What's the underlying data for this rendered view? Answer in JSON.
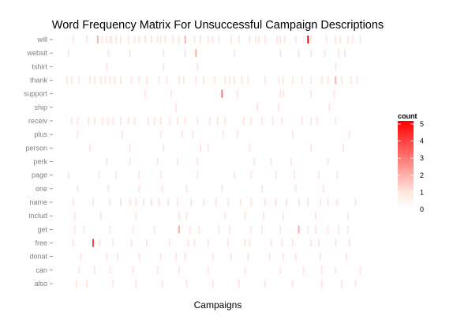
{
  "chart_data": {
    "type": "heatmap",
    "title": "Word Frequency Matrix For Unsuccessful Campaign Descriptions",
    "xlabel": "Campaigns",
    "ylabel": "",
    "x_categories_count": 200,
    "words": [
      "will",
      "websit",
      "tshirt",
      "thank",
      "support",
      "ship",
      "receiv",
      "plus",
      "person",
      "perk",
      "page",
      "one",
      "name",
      "includ",
      "get",
      "free",
      "donat",
      "can",
      "also"
    ],
    "cells": {
      "will": [
        [
          5,
          1
        ],
        [
          14,
          1
        ],
        [
          21,
          2
        ],
        [
          24,
          1
        ],
        [
          27,
          1
        ],
        [
          29,
          1
        ],
        [
          30,
          1
        ],
        [
          33,
          1
        ],
        [
          36,
          1
        ],
        [
          41,
          1
        ],
        [
          45,
          1
        ],
        [
          48,
          1
        ],
        [
          52,
          1
        ],
        [
          56,
          1
        ],
        [
          60,
          1
        ],
        [
          62,
          1
        ],
        [
          65,
          1
        ],
        [
          70,
          1
        ],
        [
          74,
          1
        ],
        [
          78,
          2
        ],
        [
          84,
          1
        ],
        [
          88,
          1
        ],
        [
          93,
          1
        ],
        [
          96,
          1
        ],
        [
          100,
          1
        ],
        [
          108,
          1
        ],
        [
          113,
          1
        ],
        [
          120,
          1
        ],
        [
          124,
          1
        ],
        [
          126,
          1
        ],
        [
          130,
          1
        ],
        [
          138,
          1
        ],
        [
          140,
          1
        ],
        [
          143,
          1
        ],
        [
          150,
          1
        ],
        [
          158,
          5
        ],
        [
          160,
          1
        ],
        [
          170,
          1
        ],
        [
          176,
          1
        ],
        [
          179,
          1
        ],
        [
          184,
          1
        ],
        [
          187,
          1
        ],
        [
          192,
          1
        ]
      ],
      "websit": [
        [
          2,
          1
        ],
        [
          28,
          1
        ],
        [
          42,
          1
        ],
        [
          64,
          1
        ],
        [
          78,
          1
        ],
        [
          85,
          2
        ],
        [
          110,
          1
        ],
        [
          140,
          1
        ],
        [
          152,
          1
        ],
        [
          160,
          1
        ],
        [
          169,
          1
        ],
        [
          178,
          1
        ],
        [
          182,
          1
        ]
      ],
      "tshirt": [
        [
          27,
          1
        ],
        [
          64,
          1
        ],
        [
          86,
          1
        ],
        [
          176,
          1
        ]
      ],
      "thank": [
        [
          1,
          1
        ],
        [
          4,
          1
        ],
        [
          9,
          1
        ],
        [
          16,
          1
        ],
        [
          19,
          1
        ],
        [
          23,
          1
        ],
        [
          26,
          1
        ],
        [
          29,
          1
        ],
        [
          32,
          1
        ],
        [
          36,
          1
        ],
        [
          43,
          1
        ],
        [
          48,
          1
        ],
        [
          53,
          1
        ],
        [
          61,
          1
        ],
        [
          66,
          1
        ],
        [
          74,
          1
        ],
        [
          77,
          1
        ],
        [
          85,
          1
        ],
        [
          90,
          1
        ],
        [
          97,
          1
        ],
        [
          104,
          1
        ],
        [
          107,
          1
        ],
        [
          110,
          1
        ],
        [
          115,
          1
        ],
        [
          119,
          1
        ],
        [
          130,
          1
        ],
        [
          139,
          1
        ],
        [
          142,
          1
        ],
        [
          148,
          1
        ],
        [
          154,
          1
        ],
        [
          160,
          1
        ],
        [
          167,
          1
        ],
        [
          171,
          1
        ],
        [
          176,
          2
        ],
        [
          180,
          1
        ],
        [
          186,
          1
        ],
        [
          190,
          1
        ]
      ],
      "support": [
        [
          52,
          1
        ],
        [
          69,
          1
        ],
        [
          102,
          3
        ],
        [
          112,
          1
        ],
        [
          140,
          1
        ],
        [
          142,
          1
        ],
        [
          160,
          1
        ],
        [
          175,
          1
        ]
      ],
      "ship": [
        [
          72,
          1
        ],
        [
          125,
          1
        ],
        [
          139,
          1
        ],
        [
          172,
          1
        ]
      ],
      "receiv": [
        [
          4,
          1
        ],
        [
          8,
          1
        ],
        [
          15,
          1
        ],
        [
          19,
          1
        ],
        [
          24,
          1
        ],
        [
          28,
          1
        ],
        [
          31,
          1
        ],
        [
          36,
          1
        ],
        [
          41,
          1
        ],
        [
          45,
          1
        ],
        [
          54,
          1
        ],
        [
          58,
          1
        ],
        [
          62,
          1
        ],
        [
          68,
          1
        ],
        [
          73,
          1
        ],
        [
          78,
          1
        ],
        [
          86,
          1
        ],
        [
          94,
          1
        ],
        [
          99,
          1
        ],
        [
          104,
          1
        ],
        [
          116,
          1
        ],
        [
          121,
          1
        ],
        [
          128,
          1
        ],
        [
          135,
          1
        ],
        [
          141,
          1
        ],
        [
          154,
          1
        ],
        [
          160,
          1
        ],
        [
          164,
          1
        ],
        [
          176,
          1
        ]
      ],
      "plus": [
        [
          8,
          1
        ],
        [
          37,
          1
        ],
        [
          62,
          1
        ],
        [
          76,
          1
        ],
        [
          83,
          1
        ],
        [
          103,
          1
        ],
        [
          112,
          1
        ],
        [
          148,
          1
        ],
        [
          185,
          1
        ]
      ],
      "person": [
        [
          16,
          1
        ],
        [
          42,
          1
        ],
        [
          64,
          1
        ],
        [
          88,
          1
        ],
        [
          93,
          1
        ],
        [
          120,
          1
        ],
        [
          160,
          1
        ],
        [
          181,
          1
        ]
      ],
      "perk": [
        [
          27,
          1
        ],
        [
          42,
          1
        ],
        [
          60,
          1
        ],
        [
          73,
          1
        ],
        [
          86,
          1
        ],
        [
          123,
          1
        ],
        [
          134,
          1
        ],
        [
          147,
          1
        ],
        [
          171,
          1
        ]
      ],
      "page": [
        [
          2,
          1
        ],
        [
          22,
          1
        ],
        [
          33,
          1
        ],
        [
          48,
          1
        ],
        [
          62,
          1
        ],
        [
          86,
          1
        ],
        [
          110,
          1
        ],
        [
          121,
          1
        ],
        [
          137,
          1
        ],
        [
          149,
          1
        ],
        [
          165,
          1
        ],
        [
          177,
          1
        ]
      ],
      "one": [
        [
          8,
          1
        ],
        [
          28,
          1
        ],
        [
          48,
          1
        ],
        [
          63,
          1
        ],
        [
          79,
          1
        ],
        [
          102,
          1
        ],
        [
          128,
          1
        ],
        [
          150,
          1
        ],
        [
          168,
          1
        ]
      ],
      "name": [
        [
          5,
          1
        ],
        [
          18,
          1
        ],
        [
          29,
          1
        ],
        [
          36,
          1
        ],
        [
          42,
          1
        ],
        [
          46,
          1
        ],
        [
          51,
          1
        ],
        [
          56,
          1
        ],
        [
          61,
          1
        ],
        [
          67,
          1
        ],
        [
          73,
          1
        ],
        [
          82,
          1
        ],
        [
          90,
          1
        ],
        [
          98,
          1
        ],
        [
          106,
          1
        ],
        [
          114,
          1
        ],
        [
          121,
          1
        ],
        [
          130,
          1
        ],
        [
          137,
          1
        ],
        [
          144,
          1
        ],
        [
          152,
          1
        ],
        [
          158,
          1
        ],
        [
          166,
          1
        ],
        [
          171,
          1
        ],
        [
          177,
          1
        ],
        [
          189,
          1
        ]
      ],
      "includ": [
        [
          6,
          1
        ],
        [
          23,
          1
        ],
        [
          46,
          1
        ],
        [
          74,
          1
        ],
        [
          79,
          1
        ],
        [
          104,
          1
        ],
        [
          117,
          1
        ],
        [
          129,
          1
        ],
        [
          142,
          1
        ],
        [
          163,
          1
        ],
        [
          184,
          1
        ]
      ],
      "get": [
        [
          6,
          1
        ],
        [
          12,
          1
        ],
        [
          29,
          1
        ],
        [
          44,
          1
        ],
        [
          58,
          1
        ],
        [
          74,
          2
        ],
        [
          81,
          1
        ],
        [
          87,
          1
        ],
        [
          100,
          1
        ],
        [
          107,
          1
        ],
        [
          121,
          1
        ],
        [
          128,
          1
        ],
        [
          140,
          1
        ],
        [
          152,
          2
        ],
        [
          158,
          1
        ],
        [
          163,
          1
        ],
        [
          171,
          1
        ],
        [
          178,
          1
        ],
        [
          184,
          1
        ]
      ],
      "free": [
        [
          5,
          1
        ],
        [
          18,
          4
        ],
        [
          22,
          1
        ],
        [
          31,
          1
        ],
        [
          43,
          1
        ],
        [
          53,
          1
        ],
        [
          68,
          1
        ],
        [
          80,
          1
        ],
        [
          84,
          1
        ],
        [
          93,
          1
        ],
        [
          106,
          1
        ],
        [
          117,
          1
        ],
        [
          120,
          1
        ],
        [
          134,
          1
        ],
        [
          141,
          1
        ],
        [
          148,
          1
        ],
        [
          160,
          1
        ],
        [
          165,
          1
        ],
        [
          176,
          1
        ],
        [
          185,
          1
        ]
      ],
      "donat": [
        [
          10,
          1
        ],
        [
          27,
          1
        ],
        [
          34,
          1
        ],
        [
          48,
          1
        ],
        [
          62,
          1
        ],
        [
          72,
          1
        ],
        [
          78,
          1
        ],
        [
          96,
          1
        ],
        [
          108,
          1
        ],
        [
          119,
          1
        ],
        [
          133,
          1
        ],
        [
          142,
          1
        ],
        [
          150,
          1
        ],
        [
          166,
          1
        ],
        [
          183,
          1
        ]
      ],
      "can": [
        [
          9,
          1
        ],
        [
          19,
          1
        ],
        [
          29,
          1
        ],
        [
          44,
          1
        ],
        [
          60,
          1
        ],
        [
          74,
          1
        ],
        [
          93,
          1
        ],
        [
          117,
          1
        ],
        [
          140,
          1
        ],
        [
          155,
          1
        ],
        [
          167,
          1
        ],
        [
          176,
          1
        ],
        [
          192,
          1
        ]
      ],
      "also": [
        [
          7,
          1
        ],
        [
          14,
          1
        ],
        [
          31,
          1
        ],
        [
          46,
          1
        ],
        [
          63,
          1
        ],
        [
          79,
          1
        ],
        [
          96,
          1
        ],
        [
          113,
          1
        ],
        [
          130,
          1
        ],
        [
          148,
          1
        ],
        [
          167,
          1
        ],
        [
          180,
          1
        ],
        [
          189,
          1
        ]
      ]
    },
    "legend": {
      "title": "count",
      "ticks": [
        "5",
        "4",
        "3",
        "2",
        "1",
        "0"
      ],
      "min": 0,
      "max": 5,
      "low_color": "#ffffff",
      "high_color": "#ff0000",
      "placement": "right"
    },
    "grid": false
  }
}
